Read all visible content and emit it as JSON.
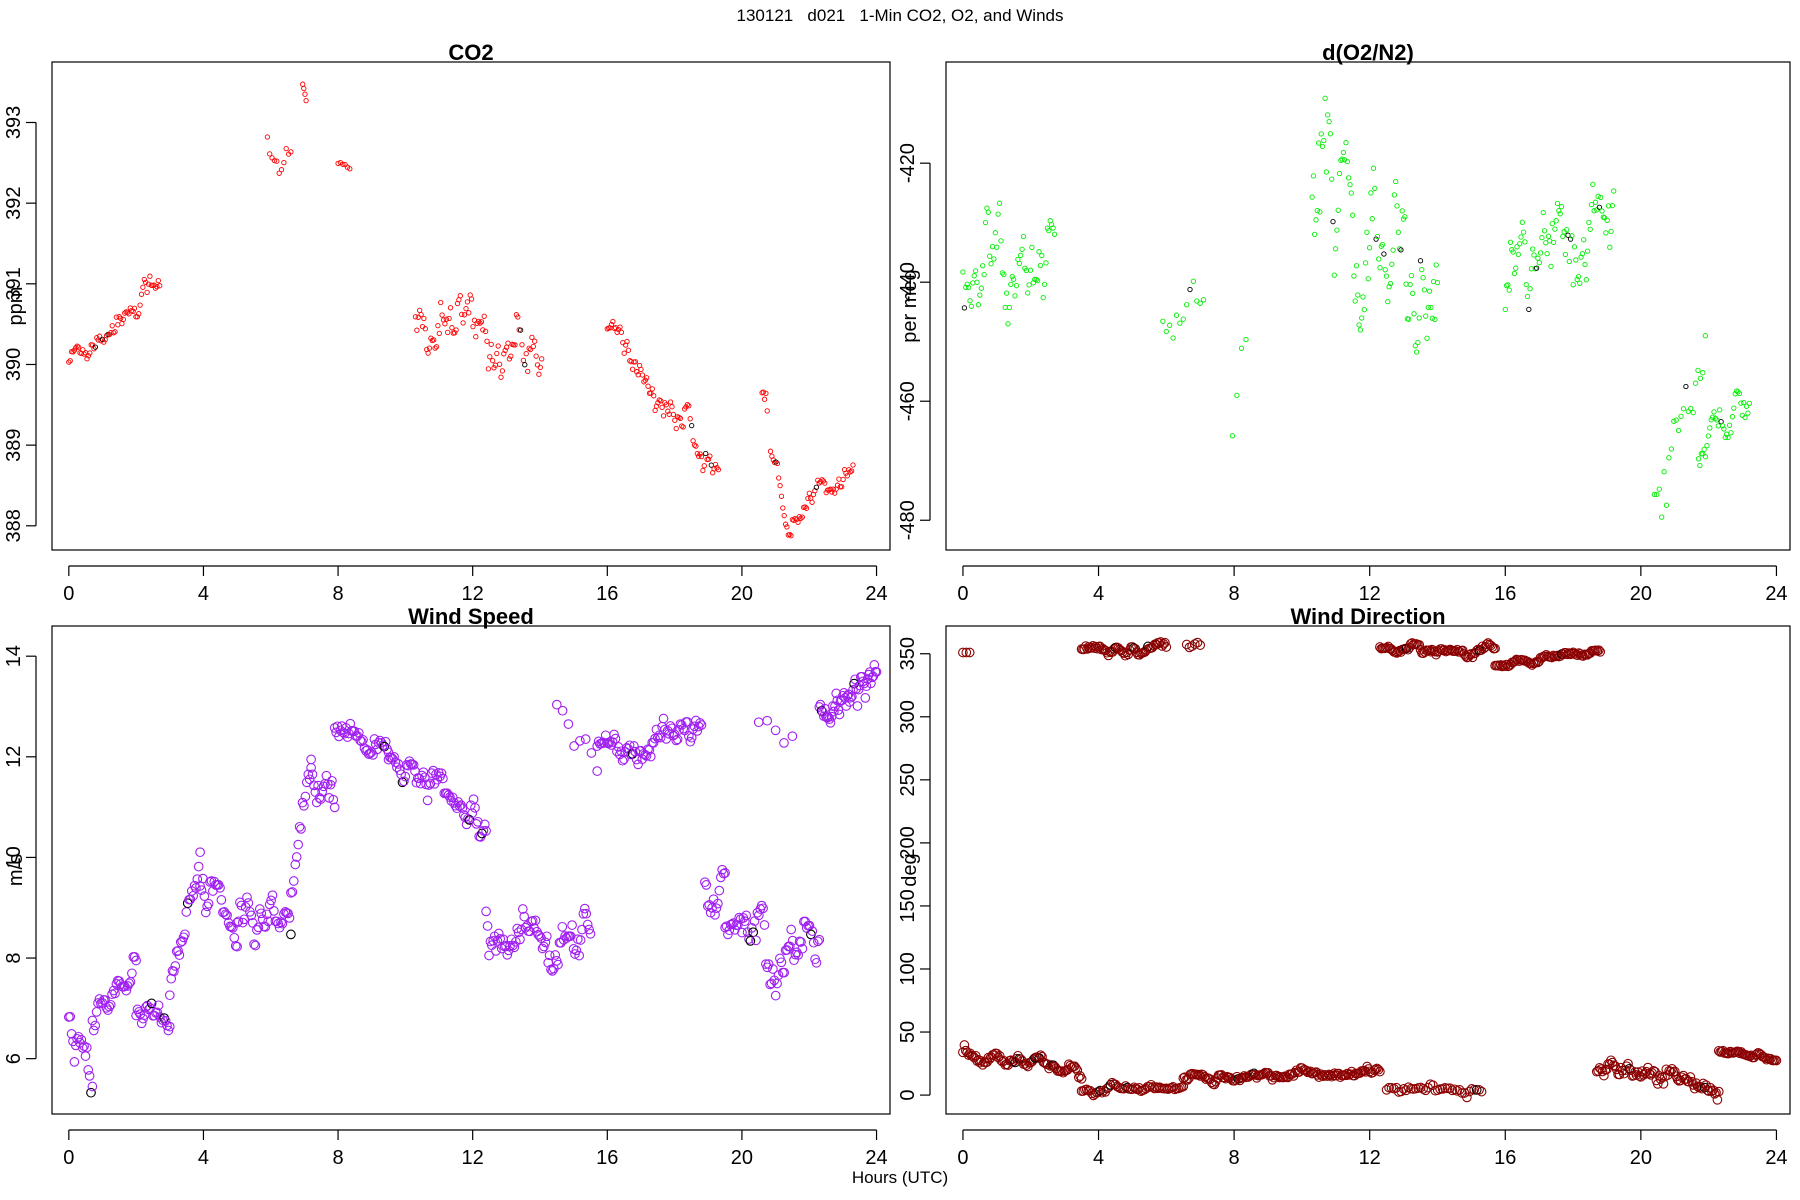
{
  "figure": {
    "title": "130121   d021   1-Min CO2, O2, and Winds",
    "xlabel": "Hours (UTC)"
  },
  "chart_data": [
    {
      "type": "scatter",
      "title": "CO2",
      "ylabel": "ppm",
      "xlabel": "",
      "color": "#ff0000",
      "marker_size": "small",
      "xlim": [
        -0.5,
        24.4
      ],
      "ylim": [
        387.7,
        393.75
      ],
      "xticks": [
        0,
        4,
        8,
        12,
        16,
        20,
        24
      ],
      "yticks": [
        388,
        389,
        390,
        391,
        392,
        393
      ],
      "segments": [
        {
          "x": [
            0.0,
            2.7
          ],
          "y": [
            390.05,
            391.05
          ],
          "noise": 0.15,
          "rate": 24
        },
        {
          "x": [
            5.9,
            6.6
          ],
          "y": [
            392.9,
            392.45
          ],
          "noise": 0.3,
          "rate": 14
        },
        {
          "x": [
            6.95,
            7.05
          ],
          "y": [
            393.5,
            393.2
          ],
          "noise": 0.1,
          "rate": 30
        },
        {
          "x": [
            8.0,
            8.35
          ],
          "y": [
            392.5,
            392.4
          ],
          "noise": 0.05,
          "rate": 14
        },
        {
          "x": [
            10.3,
            14.05
          ],
          "y": [
            390.45,
            390.25
          ],
          "noise": 0.32,
          "rate": 24
        },
        {
          "x": [
            16.0,
            19.3
          ],
          "y": [
            390.4,
            388.7
          ],
          "noise": 0.18,
          "rate": 24
        },
        {
          "x": [
            20.6,
            20.75
          ],
          "y": [
            389.6,
            389.3
          ],
          "noise": 0.1,
          "rate": 24
        },
        {
          "x": [
            20.85,
            21.5
          ],
          "y": [
            388.9,
            387.95
          ],
          "noise": 0.12,
          "rate": 24
        },
        {
          "x": [
            21.5,
            23.3
          ],
          "y": [
            388.0,
            388.75
          ],
          "noise": 0.12,
          "rate": 24
        }
      ]
    },
    {
      "type": "scatter",
      "title": "d(O2/N2)",
      "ylabel": "per meg",
      "xlabel": "",
      "color": "#00ee00",
      "marker_size": "small",
      "xlim": [
        -0.5,
        24.4
      ],
      "ylim": [
        -485,
        -403
      ],
      "xticks": [
        0,
        4,
        8,
        12,
        16,
        20,
        24
      ],
      "yticks": [
        -480,
        -460,
        -440,
        -420
      ],
      "segments": [
        {
          "x": [
            0.0,
            2.7
          ],
          "y": [
            -440,
            -435
          ],
          "noise": 6,
          "rate": 24
        },
        {
          "x": [
            5.9,
            7.1
          ],
          "y": [
            -445,
            -445
          ],
          "noise": 5,
          "rate": 10
        },
        {
          "x": [
            7.95,
            8.35
          ],
          "y": [
            -460,
            -440
          ],
          "noise": 8,
          "rate": 8
        },
        {
          "x": [
            10.3,
            14.0
          ],
          "y": [
            -428,
            -435
          ],
          "noise": 11,
          "rate": 26
        },
        {
          "x": [
            16.0,
            19.2
          ],
          "y": [
            -443,
            -428
          ],
          "noise": 6,
          "rate": 26
        },
        {
          "x": [
            20.4,
            21.9
          ],
          "y": [
            -475,
            -440
          ],
          "noise": 7,
          "rate": 14
        },
        {
          "x": [
            21.7,
            23.2
          ],
          "y": [
            -470,
            -458
          ],
          "noise": 3,
          "rate": 24
        }
      ]
    },
    {
      "type": "scatter",
      "title": "Wind Speed",
      "ylabel": "m/s",
      "xlabel": "",
      "color": "#a020f0",
      "marker_size": "large",
      "xlim": [
        -0.5,
        24.4
      ],
      "ylim": [
        4.9,
        14.6
      ],
      "xticks": [
        0,
        4,
        8,
        12,
        16,
        20,
        24
      ],
      "yticks": [
        6,
        8,
        10,
        12,
        14
      ],
      "segments": [
        {
          "x": [
            0.0,
            0.7
          ],
          "y": [
            6.8,
            6.0
          ],
          "noise": 0.5,
          "rate": 24
        },
        {
          "x": [
            0.7,
            2.0
          ],
          "y": [
            6.8,
            7.7
          ],
          "noise": 0.25,
          "rate": 24
        },
        {
          "x": [
            2.0,
            3.0
          ],
          "y": [
            7.4,
            6.8
          ],
          "noise": 0.3,
          "rate": 24
        },
        {
          "x": [
            3.0,
            3.9
          ],
          "y": [
            7.3,
            9.9
          ],
          "noise": 0.35,
          "rate": 24
        },
        {
          "x": [
            3.9,
            5.0
          ],
          "y": [
            9.7,
            8.6
          ],
          "noise": 0.35,
          "rate": 24
        },
        {
          "x": [
            5.0,
            6.6
          ],
          "y": [
            8.5,
            8.5
          ],
          "noise": 0.45,
          "rate": 24
        },
        {
          "x": [
            6.6,
            7.2
          ],
          "y": [
            9.3,
            12.0
          ],
          "noise": 0.4,
          "rate": 24
        },
        {
          "x": [
            7.2,
            7.9
          ],
          "y": [
            11.5,
            11.0
          ],
          "noise": 0.4,
          "rate": 24
        },
        {
          "x": [
            7.9,
            9.5
          ],
          "y": [
            12.5,
            12.2
          ],
          "noise": 0.22,
          "rate": 24
        },
        {
          "x": [
            9.5,
            12.4
          ],
          "y": [
            12.0,
            10.9
          ],
          "noise": 0.25,
          "rate": 24
        },
        {
          "x": [
            12.4,
            15.5
          ],
          "y": [
            8.8,
            8.0
          ],
          "noise": 0.4,
          "rate": 24
        },
        {
          "x": [
            14.5,
            15.7
          ],
          "y": [
            12.8,
            12.5
          ],
          "noise": 0.5,
          "rate": 6
        },
        {
          "x": [
            15.7,
            18.8
          ],
          "y": [
            12.3,
            12.3
          ],
          "noise": 0.3,
          "rate": 24
        },
        {
          "x": [
            18.9,
            19.5
          ],
          "y": [
            9.5,
            9.6
          ],
          "noise": 0.4,
          "rate": 24
        },
        {
          "x": [
            19.5,
            22.3
          ],
          "y": [
            8.5,
            8.3
          ],
          "noise": 0.5,
          "rate": 24
        },
        {
          "x": [
            20.5,
            21.5
          ],
          "y": [
            13.0,
            12.0
          ],
          "noise": 0.8,
          "rate": 4
        },
        {
          "x": [
            22.3,
            24.0
          ],
          "y": [
            12.8,
            13.9
          ],
          "noise": 0.35,
          "rate": 30
        }
      ]
    },
    {
      "type": "scatter",
      "title": "Wind Direction",
      "ylabel": "deg",
      "xlabel": "",
      "color": "#8b0000",
      "marker_size": "large",
      "xlim": [
        -0.5,
        24.4
      ],
      "ylim": [
        -15,
        372
      ],
      "xticks": [
        0,
        4,
        8,
        12,
        16,
        20,
        24
      ],
      "yticks": [
        0,
        50,
        100,
        150,
        200,
        250,
        300,
        350
      ],
      "segments": [
        {
          "x": [
            0.0,
            0.2
          ],
          "y": [
            352,
            352
          ],
          "noise": 2,
          "rate": 12
        },
        {
          "x": [
            0.0,
            3.5
          ],
          "y": [
            32,
            20
          ],
          "noise": 4,
          "rate": 24
        },
        {
          "x": [
            3.5,
            6.5
          ],
          "y": [
            4,
            5
          ],
          "noise": 3,
          "rate": 20
        },
        {
          "x": [
            3.5,
            6.0
          ],
          "y": [
            352,
            356
          ],
          "noise": 3,
          "rate": 24
        },
        {
          "x": [
            6.6,
            7.0
          ],
          "y": [
            357,
            357
          ],
          "noise": 4,
          "rate": 12
        },
        {
          "x": [
            6.5,
            12.3
          ],
          "y": [
            14,
            17
          ],
          "noise": 3,
          "rate": 24
        },
        {
          "x": [
            12.3,
            15.7
          ],
          "y": [
            354,
            352
          ],
          "noise": 3,
          "rate": 24
        },
        {
          "x": [
            12.5,
            15.3
          ],
          "y": [
            6,
            2
          ],
          "noise": 3,
          "rate": 14
        },
        {
          "x": [
            15.7,
            18.8
          ],
          "y": [
            341,
            350
          ],
          "noise": 2,
          "rate": 24
        },
        {
          "x": [
            18.7,
            22.3
          ],
          "y": [
            20,
            10
          ],
          "noise": 6,
          "rate": 24
        },
        {
          "x": [
            22.3,
            24.0
          ],
          "y": [
            34,
            30
          ],
          "noise": 2,
          "rate": 24
        }
      ]
    }
  ]
}
